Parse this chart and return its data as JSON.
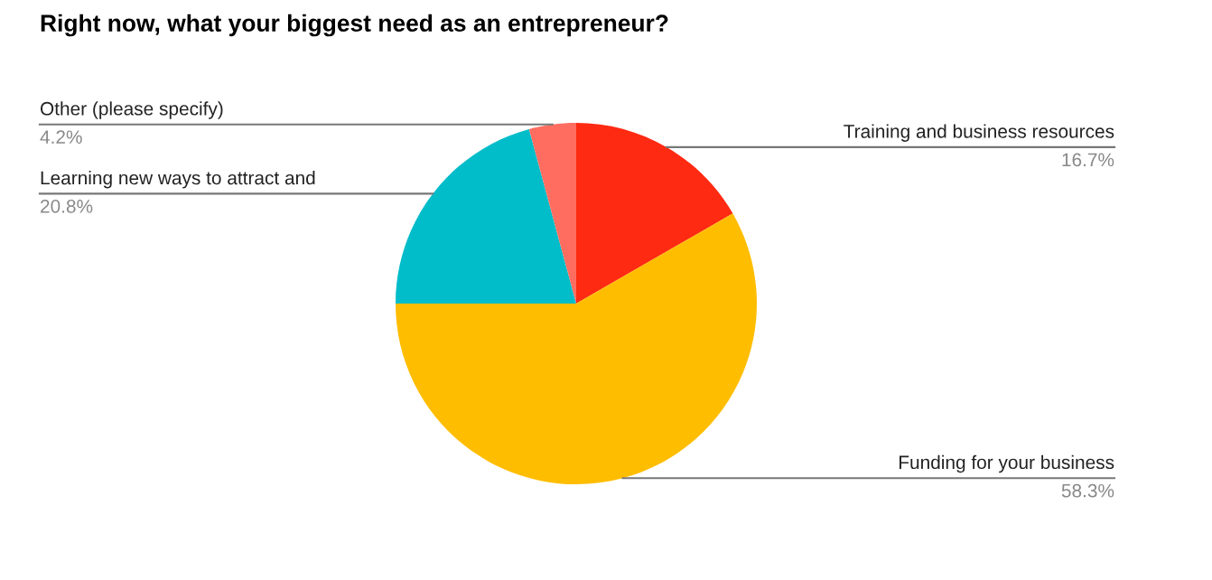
{
  "chart_data": {
    "type": "pie",
    "title": "Right now, what your biggest need as an entrepreneur?",
    "categories": [
      "Training and business resources",
      "Funding for your business",
      "Learning new ways to attract and",
      "Other (please specify)"
    ],
    "values": [
      16.7,
      58.3,
      20.8,
      4.2
    ],
    "value_labels": [
      "16.7%",
      "58.3%",
      "20.8%",
      "4.2%"
    ],
    "colors": [
      "#ff2a12",
      "#ffbd00",
      "#00bdc9",
      "#ff6d60"
    ]
  }
}
